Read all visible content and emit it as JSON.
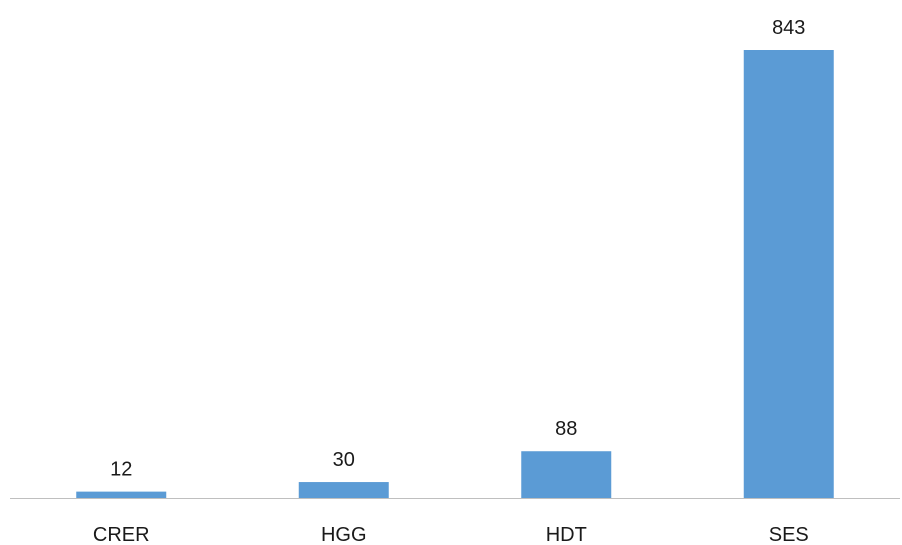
{
  "chart_data": {
    "type": "bar",
    "title": "",
    "xlabel": "",
    "ylabel": "",
    "categories": [
      "CRER",
      "HGG",
      "HDT",
      "SES"
    ],
    "values": [
      12,
      30,
      88,
      843
    ],
    "data_labels": [
      "12",
      "30",
      "88",
      "843"
    ],
    "ylim": [
      0,
      843
    ],
    "grid": false,
    "legend": "none",
    "bar_color": "#5b9bd5",
    "axis_color": "#bfbfbf"
  }
}
